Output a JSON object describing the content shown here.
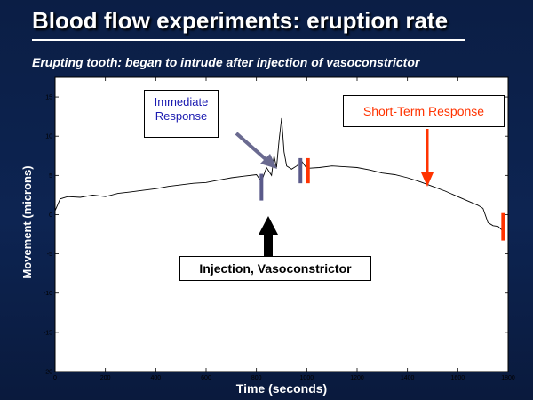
{
  "slide": {
    "title": "Blood flow experiments: eruption rate",
    "subtitle": "Erupting tooth: began to intrude after injection of vasoconstrictor"
  },
  "annotations": {
    "immediate": [
      "Immediate",
      "Response"
    ],
    "short_term": "Short-Term Response",
    "injection": "Injection, Vasoconstrictor"
  },
  "colors": {
    "marker_blue": "#5a5a8a",
    "marker_red": "#ff3300",
    "arrow_blue": "#6a6a90",
    "arrow_red": "#ff3300",
    "arrow_black": "#000000"
  },
  "chart_data": {
    "type": "line",
    "xlabel": "Time (seconds)",
    "ylabel": "Movement (microns)",
    "xlim": [
      0,
      1800
    ],
    "ylim": [
      -20,
      17.5
    ],
    "xticks": [
      0,
      200,
      400,
      600,
      800,
      1000,
      1200,
      1400,
      1600,
      1800
    ],
    "yticks": [
      -20,
      -15,
      -10,
      -5,
      0,
      5,
      10,
      15
    ],
    "grid": false,
    "series": [
      {
        "x": [
          0,
          20,
          50,
          100,
          150,
          200,
          250,
          300,
          350,
          400,
          450,
          500,
          550,
          600,
          650,
          700,
          750,
          800,
          820,
          840,
          860,
          870,
          880,
          890,
          900,
          910,
          920,
          940,
          960,
          980,
          1000,
          1050,
          1100,
          1150,
          1200,
          1250,
          1300,
          1350,
          1400,
          1450,
          1500,
          1550,
          1600,
          1650,
          1680,
          1700,
          1720,
          1740,
          1760,
          1780
        ],
        "y": [
          0.5,
          2,
          2.3,
          2.2,
          2.5,
          2.3,
          2.7,
          2.9,
          3.1,
          3.3,
          3.6,
          3.8,
          4.0,
          4.1,
          4.4,
          4.7,
          4.9,
          5.1,
          4.2,
          6.0,
          5.0,
          7.5,
          6.0,
          9.5,
          12.3,
          8.0,
          6.2,
          5.8,
          6.2,
          6.8,
          5.9,
          6.0,
          6.2,
          6.1,
          6.0,
          5.7,
          5.3,
          5.1,
          4.7,
          4.2,
          3.6,
          3.0,
          2.3,
          1.6,
          1.2,
          0.8,
          -1.0,
          -1.4,
          -1.5,
          -2.1
        ]
      }
    ],
    "markers": [
      {
        "x": 820,
        "y_from": 1.8,
        "y_to": 5.2,
        "color": "#5a5a8a"
      },
      {
        "x": 975,
        "y_from": 4.0,
        "y_to": 7.2,
        "color": "#5a5a8a"
      },
      {
        "x": 1005,
        "y_from": 4.0,
        "y_to": 7.2,
        "color": "#ff3300"
      },
      {
        "x": 1780,
        "y_from": -3.3,
        "y_to": 0.2,
        "color": "#ff3300"
      }
    ]
  }
}
